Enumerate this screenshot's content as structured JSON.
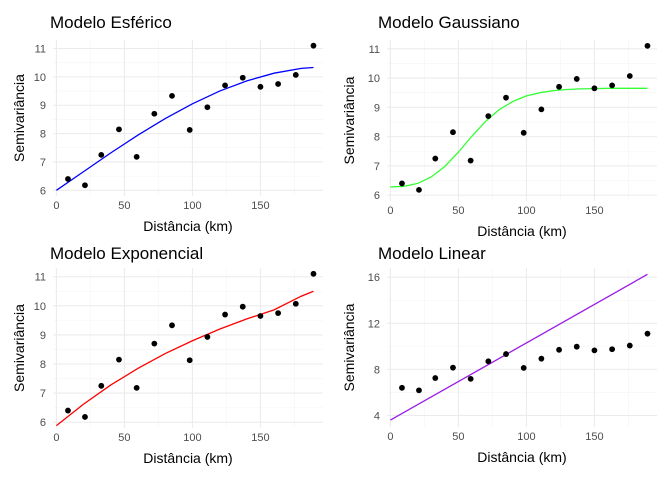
{
  "chart_data": [
    {
      "type": "scatter",
      "title": "Modelo Esférico",
      "xlabel": "Distância (km)",
      "ylabel": "Semivariância",
      "xlim": [
        -2.5,
        196
      ],
      "ylim": [
        5.8,
        11.3
      ],
      "xticks": [
        0,
        50,
        100,
        150
      ],
      "yticks": [
        6,
        7,
        8,
        9,
        10,
        11
      ],
      "grid": true,
      "points": {
        "color": "#000000",
        "x": [
          8.5,
          21,
          33,
          46,
          59,
          72,
          85,
          98,
          111,
          124,
          137,
          150,
          163,
          176,
          189
        ],
        "y": [
          6.4,
          6.18,
          7.25,
          8.15,
          7.18,
          8.7,
          9.33,
          8.13,
          8.93,
          9.7,
          9.97,
          9.65,
          9.75,
          10.07,
          11.1
        ]
      },
      "model_line": {
        "color": "#0000FF",
        "x": [
          0,
          20,
          40,
          60,
          80,
          100,
          120,
          140,
          160,
          180,
          189
        ],
        "y": [
          6.0,
          6.66,
          7.32,
          7.95,
          8.53,
          9.05,
          9.5,
          9.86,
          10.13,
          10.3,
          10.33
        ]
      }
    },
    {
      "type": "scatter",
      "title": "Modelo Gaussiano",
      "xlabel": "Distância (km)",
      "ylabel": "Semivariância",
      "xlim": [
        -2.5,
        196
      ],
      "ylim": [
        5.8,
        11.3
      ],
      "xticks": [
        0,
        50,
        100,
        150
      ],
      "yticks": [
        6,
        7,
        8,
        9,
        10,
        11
      ],
      "grid": true,
      "points": {
        "color": "#000000",
        "x": [
          8.5,
          21,
          33,
          46,
          59,
          72,
          85,
          98,
          111,
          124,
          137,
          150,
          163,
          176,
          189
        ],
        "y": [
          6.4,
          6.18,
          7.25,
          8.15,
          7.18,
          8.7,
          9.33,
          8.13,
          8.93,
          9.7,
          9.97,
          9.65,
          9.75,
          10.07,
          11.1
        ]
      },
      "model_line": {
        "color": "#33FF33",
        "x": [
          0,
          10,
          20,
          30,
          40,
          50,
          60,
          70,
          80,
          90,
          100,
          110,
          120,
          130,
          140,
          150,
          160,
          170,
          180,
          189
        ],
        "y": [
          6.28,
          6.3,
          6.4,
          6.62,
          6.98,
          7.47,
          8.02,
          8.52,
          8.92,
          9.2,
          9.39,
          9.5,
          9.57,
          9.61,
          9.63,
          9.64,
          9.65,
          9.65,
          9.65,
          9.65
        ]
      }
    },
    {
      "type": "scatter",
      "title": "Modelo Exponencial",
      "xlabel": "Distância (km)",
      "ylabel": "Semivariância",
      "xlim": [
        -2.5,
        196
      ],
      "ylim": [
        5.8,
        11.3
      ],
      "xticks": [
        0,
        50,
        100,
        150
      ],
      "yticks": [
        6,
        7,
        8,
        9,
        10,
        11
      ],
      "grid": true,
      "points": {
        "color": "#000000",
        "x": [
          8.5,
          21,
          33,
          46,
          59,
          72,
          85,
          98,
          111,
          124,
          137,
          150,
          163,
          176,
          189
        ],
        "y": [
          6.4,
          6.18,
          7.25,
          8.15,
          7.18,
          8.7,
          9.33,
          8.13,
          8.93,
          9.7,
          9.97,
          9.65,
          9.75,
          10.07,
          11.1
        ]
      },
      "model_line": {
        "color": "#FF0000",
        "x": [
          0,
          20,
          40,
          60,
          80,
          100,
          120,
          140,
          160,
          180,
          189
        ],
        "y": [
          5.88,
          6.62,
          7.28,
          7.85,
          8.36,
          8.8,
          9.2,
          9.55,
          9.86,
          10.33,
          10.5
        ]
      }
    },
    {
      "type": "scatter",
      "title": "Modelo Linear",
      "xlabel": "Distância (km)",
      "ylabel": "Semivariância",
      "xlim": [
        -2.5,
        196
      ],
      "ylim": [
        3.0,
        16.8
      ],
      "xticks": [
        0,
        50,
        100,
        150
      ],
      "yticks": [
        4,
        8,
        12,
        16
      ],
      "grid": true,
      "points": {
        "color": "#000000",
        "x": [
          8.5,
          21,
          33,
          46,
          59,
          72,
          85,
          98,
          111,
          124,
          137,
          150,
          163,
          176,
          189
        ],
        "y": [
          6.4,
          6.18,
          7.25,
          8.15,
          7.18,
          8.7,
          9.33,
          8.13,
          8.93,
          9.7,
          9.97,
          9.65,
          9.75,
          10.07,
          11.1
        ]
      },
      "model_line": {
        "color": "#9B1BE6",
        "x": [
          0,
          189
        ],
        "y": [
          3.6,
          16.25
        ]
      }
    }
  ]
}
